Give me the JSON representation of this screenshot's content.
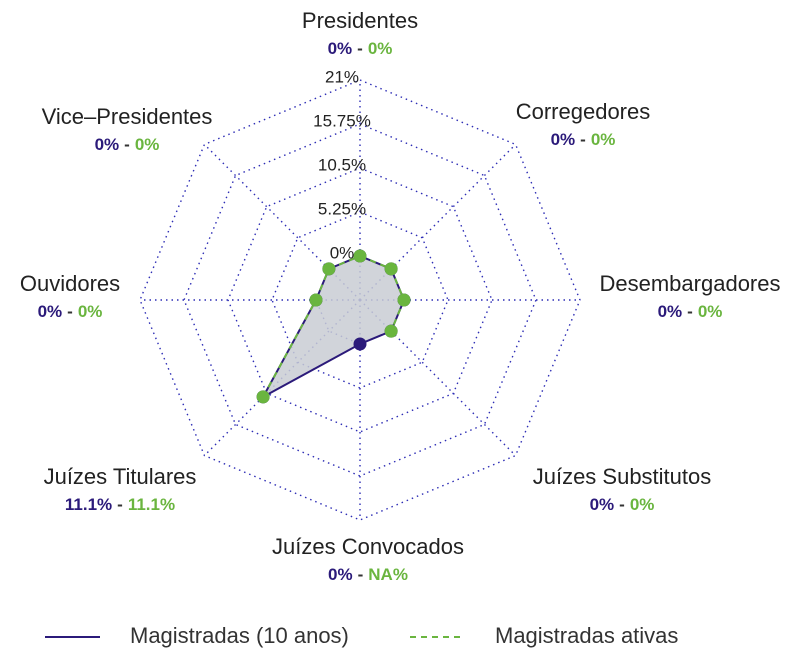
{
  "chart_data": {
    "type": "radar",
    "categories": [
      "Presidentes",
      "Corregedores",
      "Desembargadores",
      "Juízes Substitutos",
      "Juízes Convocados",
      "Juízes Titulares",
      "Ouvidores",
      "Vice–Presidentes"
    ],
    "series": [
      {
        "name": "Magistradas (10 anos)",
        "color": "#2b1a7a",
        "line_style": "solid",
        "values": [
          0,
          0,
          0,
          0,
          0,
          11.1,
          0,
          0
        ],
        "value_labels": [
          "0%",
          "0%",
          "0%",
          "0%",
          "0%",
          "11.1%",
          "0%",
          "0%"
        ]
      },
      {
        "name": "Magistradas ativas",
        "color": "#6ab53f",
        "line_style": "dashed",
        "values": [
          0,
          0,
          0,
          0,
          null,
          11.1,
          0,
          0
        ],
        "value_labels": [
          "0%",
          "0%",
          "0%",
          "0%",
          "NA%",
          "11.1%",
          "0%",
          "0%"
        ]
      }
    ],
    "value_separator": "-",
    "ylim": [
      -5.25,
      21
    ],
    "yticks": [
      {
        "value": 0,
        "label": "0%"
      },
      {
        "value": 5.25,
        "label": "5.25%"
      },
      {
        "value": 10.5,
        "label": "10.5%"
      },
      {
        "value": 15.75,
        "label": "15.75%"
      },
      {
        "value": 21,
        "label": "21%"
      }
    ],
    "grid": true,
    "area_color": "#c9ccd4",
    "grid_color": "#2d2db5"
  }
}
